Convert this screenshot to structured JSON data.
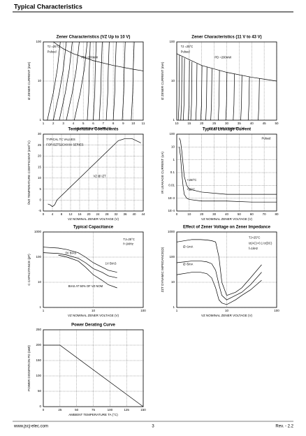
{
  "header": {
    "title": "Typical Characteristics"
  },
  "footer": {
    "website": "www.jscj-elec.com",
    "page": "3",
    "revision": "Rev. - 2.2"
  },
  "chart_data": [
    {
      "type": "line",
      "title": "Zener Characteristics (VZ Up to 10 V)",
      "xlabel": "VZ ZENER VOLTAGE (V)",
      "ylabel": "IZ ZENER CURRENT (mA)",
      "xlim": [
        1,
        11
      ],
      "xticks": [
        1,
        2,
        3,
        4,
        5,
        6,
        7,
        8,
        9,
        10,
        11
      ],
      "ylim": [
        1,
        100
      ],
      "yticks": [
        1,
        10,
        100
      ],
      "yscale": "log",
      "grid": true,
      "color": "#000000",
      "annotations": [
        "TJ =25°C",
        "Pulsed",
        "PD =200mW"
      ],
      "series": [
        {
          "x": [
            1.4,
            2.0,
            2.4,
            2.7
          ],
          "values": [
            1,
            5,
            20,
            100
          ]
        },
        {
          "x": [
            2.0,
            2.6,
            3.0,
            3.3
          ],
          "values": [
            1,
            5,
            20,
            100
          ]
        },
        {
          "x": [
            2.6,
            3.2,
            3.6,
            3.9
          ],
          "values": [
            1,
            5,
            20,
            100
          ]
        },
        {
          "x": [
            3.3,
            3.9,
            4.3,
            4.6
          ],
          "values": [
            1,
            5,
            20,
            100
          ]
        },
        {
          "x": [
            4.1,
            4.7,
            5.1,
            5.4
          ],
          "values": [
            1,
            5,
            20,
            100
          ]
        },
        {
          "x": [
            5.4,
            5.55,
            5.6,
            5.7
          ],
          "values": [
            1,
            5,
            20,
            100
          ]
        },
        {
          "x": [
            6.0,
            6.15,
            6.2,
            6.3
          ],
          "values": [
            1,
            5,
            20,
            100
          ]
        },
        {
          "x": [
            6.6,
            6.75,
            6.8,
            6.9
          ],
          "values": [
            1,
            5,
            20,
            100
          ]
        },
        {
          "x": [
            7.3,
            7.45,
            7.5,
            7.6
          ],
          "values": [
            1,
            5,
            20,
            100
          ]
        },
        {
          "x": [
            8.0,
            8.15,
            8.2,
            8.3
          ],
          "values": [
            1,
            5,
            20,
            100
          ]
        },
        {
          "x": [
            8.9,
            9.05,
            9.1,
            9.2
          ],
          "values": [
            1,
            5,
            20,
            100
          ]
        },
        {
          "x": [
            9.8,
            9.95,
            10,
            10.1
          ],
          "values": [
            1,
            5,
            20,
            100
          ]
        },
        {
          "x": [
            2,
            3,
            4,
            6,
            8,
            10,
            11
          ],
          "values": [
            100,
            66.7,
            50,
            33.3,
            25,
            20,
            18.2
          ]
        }
      ]
    },
    {
      "type": "line",
      "title": "Zener Characteristics (11 V to 43 V)",
      "xlabel": "VZ ZENER VOLTAGE (V)",
      "ylabel": "IZ ZENER CURRENT (mA)",
      "xlim": [
        10,
        50
      ],
      "xticks": [
        10,
        15,
        20,
        25,
        30,
        35,
        40,
        45,
        50
      ],
      "ylim": [
        1,
        100
      ],
      "yticks": [
        1,
        10,
        100
      ],
      "yscale": "log",
      "grid": true,
      "color": "#000000",
      "annotations": [
        "TJ =25°C",
        "Pulsed",
        "PD =200mW"
      ],
      "series": [
        {
          "x": [
            10.6,
            10.9,
            11.1
          ],
          "values": [
            1,
            2.5,
            45.5
          ]
        },
        {
          "x": [
            11.6,
            11.9,
            12.1
          ],
          "values": [
            1,
            2.5,
            41.7
          ]
        },
        {
          "x": [
            12.6,
            12.9,
            13.1
          ],
          "values": [
            1,
            2.5,
            38.5
          ]
        },
        {
          "x": [
            14.6,
            14.9,
            15.1
          ],
          "values": [
            1,
            2.5,
            33.3
          ]
        },
        {
          "x": [
            15.6,
            15.9,
            16.1
          ],
          "values": [
            1,
            2.5,
            31.3
          ]
        },
        {
          "x": [
            17.6,
            17.9,
            18.1
          ],
          "values": [
            1,
            2.5,
            27.8
          ]
        },
        {
          "x": [
            19.6,
            19.9,
            20.1
          ],
          "values": [
            1,
            2.5,
            25
          ]
        },
        {
          "x": [
            21.6,
            21.9,
            22.1
          ],
          "values": [
            1,
            2.5,
            22.7
          ]
        },
        {
          "x": [
            23.6,
            23.9,
            24.1
          ],
          "values": [
            1,
            2.5,
            20.8
          ]
        },
        {
          "x": [
            26.6,
            26.9,
            27.1
          ],
          "values": [
            1,
            2.5,
            18.5
          ]
        },
        {
          "x": [
            29.6,
            29.9,
            30.1
          ],
          "values": [
            1,
            2.5,
            16.7
          ]
        },
        {
          "x": [
            32.6,
            32.9,
            33.1
          ],
          "values": [
            1,
            2.5,
            15.2
          ]
        },
        {
          "x": [
            35.6,
            35.9,
            36.1
          ],
          "values": [
            1,
            2.5,
            13.9
          ]
        },
        {
          "x": [
            38.6,
            38.9,
            39.1
          ],
          "values": [
            1,
            2.5,
            12.8
          ]
        },
        {
          "x": [
            42.6,
            42.9,
            43.1
          ],
          "values": [
            1,
            2.5,
            11.6
          ]
        },
        {
          "x": [
            10,
            20,
            30,
            40,
            50
          ],
          "values": [
            50,
            25,
            16.7,
            12.5,
            10
          ]
        }
      ]
    },
    {
      "type": "line",
      "title": "Temperature Coefficients",
      "xlabel": "VZ NOMINAL ZENER VOLTAGE (V)",
      "ylabel": "θVZ TEMPERATURE COEFFICIENT (mV/°C)",
      "xlim": [
        0,
        44
      ],
      "xticks": [
        0,
        4,
        8,
        12,
        16,
        20,
        24,
        28,
        32,
        36,
        40,
        44
      ],
      "ylim": [
        -5,
        30
      ],
      "yticks": [
        -5,
        0,
        5,
        10,
        15,
        20,
        25,
        30
      ],
      "grid": true,
      "color": "#000000",
      "annotations": [
        "TYPICAL TC VALUES",
        "FOR BZT52CXXXX SERIES",
        "VZ @ IZT"
      ],
      "series": [
        {
          "x": [
            2,
            3,
            4,
            5,
            6,
            7,
            8,
            10,
            12,
            15,
            18,
            22,
            27,
            30,
            33,
            36,
            39,
            43
          ],
          "values": [
            -1.8,
            -2.2,
            -3,
            -2.2,
            0,
            1,
            2,
            4,
            6,
            9,
            12,
            16,
            21,
            24,
            27,
            28,
            28,
            26
          ]
        }
      ]
    },
    {
      "type": "line",
      "title": "Typical Leakage Current",
      "xlabel": "VZ NOMINAL ZENER VOLTAGE (V)",
      "ylabel": "IR LEAKAGE CURRENT (uA)",
      "xlim": [
        0,
        80
      ],
      "xticks": [
        0,
        10,
        20,
        30,
        40,
        50,
        60,
        70,
        80
      ],
      "ylim": [
        0.0001,
        100
      ],
      "yticks": [
        {
          "value": 0.0001,
          "label": "1E-4"
        },
        {
          "value": 0.001,
          "label": "1E-3"
        },
        0.01,
        0.1,
        1,
        10,
        100
      ],
      "yscale": "log",
      "grid": true,
      "color": "#000000",
      "annotations": [
        "Pulsed"
      ],
      "series": [
        {
          "name": "+150°C",
          "x": [
            2,
            3,
            4,
            5,
            6,
            8,
            10,
            20,
            40,
            60,
            80
          ],
          "values": [
            50,
            30,
            5,
            0.5,
            0.05,
            0.01,
            0.005,
            0.003,
            0.002,
            0.002,
            0.002
          ]
        },
        {
          "name": "+25°C",
          "x": [
            2,
            3,
            4,
            5,
            6,
            8,
            10,
            20,
            40,
            60,
            80
          ],
          "values": [
            10,
            2,
            0.1,
            0.01,
            0.002,
            0.001,
            0.0008,
            0.0006,
            0.0006,
            0.0005,
            0.0005
          ]
        }
      ]
    },
    {
      "type": "line",
      "title": "Typical Capacitance",
      "xlabel": "VZ NOMINAL ZENER VOLTAGE (V)",
      "ylabel": "C CAPACITANCE (pF)",
      "xlim": [
        1,
        100
      ],
      "xticks": [
        1,
        10,
        100
      ],
      "xscale": "log",
      "ylim": [
        1,
        1000
      ],
      "yticks": [
        1,
        10,
        100,
        1000
      ],
      "yscale": "log",
      "grid": true,
      "color": "#000000",
      "annotations": [
        "TJ=25°C",
        "f=1MHz"
      ],
      "series": [
        {
          "name": "0V BIAS",
          "x": [
            1,
            2,
            3,
            5,
            7,
            10,
            15,
            20,
            30
          ],
          "values": [
            250,
            230,
            200,
            150,
            100,
            60,
            40,
            30,
            25
          ]
        },
        {
          "name": "1V BIAS",
          "x": [
            1,
            2,
            3,
            5,
            7,
            10,
            15,
            20,
            30
          ],
          "values": [
            150,
            140,
            120,
            90,
            60,
            35,
            25,
            18,
            15
          ]
        },
        {
          "name": "BIAS AT 50% OF VZ NOM",
          "x": [
            2,
            3,
            5,
            7,
            10,
            15,
            20,
            30
          ],
          "values": [
            120,
            100,
            70,
            40,
            20,
            12,
            8,
            6
          ]
        }
      ]
    },
    {
      "type": "line",
      "title": "Effect of Zener Voltage on Zener Impedance",
      "xlabel": "VZ NOMINAL ZENER VOLTAGE (V)",
      "ylabel": "ZZT DYNAMIC IMPEDANCE(Ω)",
      "xlim": [
        1,
        100
      ],
      "xticks": [
        1,
        10,
        100
      ],
      "xscale": "log",
      "ylim": [
        1,
        1000
      ],
      "yticks": [
        1,
        10,
        100,
        1000
      ],
      "yscale": "log",
      "grid": true,
      "color": "#000000",
      "annotations": [
        "TJ=25°C",
        "Iz(AC)=0.1 Iz(DC)",
        "f=1kHz"
      ],
      "series": [
        {
          "name": "IZ=1mA",
          "x": [
            1,
            2,
            3,
            4,
            5,
            6,
            7,
            8,
            10,
            15,
            20,
            30,
            50
          ],
          "values": [
            400,
            500,
            500,
            480,
            450,
            400,
            100,
            10,
            3,
            4,
            6,
            15,
            50
          ]
        },
        {
          "name": "IZ=5mA",
          "x": [
            1,
            2,
            3,
            4,
            5,
            6,
            7,
            8,
            10,
            15,
            20,
            30,
            50
          ],
          "values": [
            60,
            70,
            70,
            65,
            55,
            30,
            8,
            3,
            2,
            3,
            4,
            8,
            25
          ]
        },
        {
          "x": [
            1,
            2,
            3,
            4,
            5,
            6,
            7,
            8,
            10,
            15,
            20,
            30,
            50
          ],
          "values": [
            20,
            25,
            25,
            22,
            15,
            6,
            2,
            1.5,
            1.3,
            2,
            3,
            5,
            12
          ]
        }
      ]
    },
    {
      "type": "line",
      "title": "Power Derating Curve",
      "xlabel": "AMBIENT TEMPERATURE TA (°C)",
      "ylabel": "POWER DISSIPATION PD (mW)",
      "xlim": [
        0,
        150
      ],
      "xticks": [
        0,
        25,
        50,
        75,
        100,
        125,
        150
      ],
      "ylim": [
        0,
        250
      ],
      "yticks": [
        0,
        50,
        100,
        150,
        200,
        250
      ],
      "grid": true,
      "color": "#000000",
      "series": [
        {
          "x": [
            0,
            25,
            150
          ],
          "values": [
            200,
            200,
            0
          ]
        }
      ]
    }
  ]
}
